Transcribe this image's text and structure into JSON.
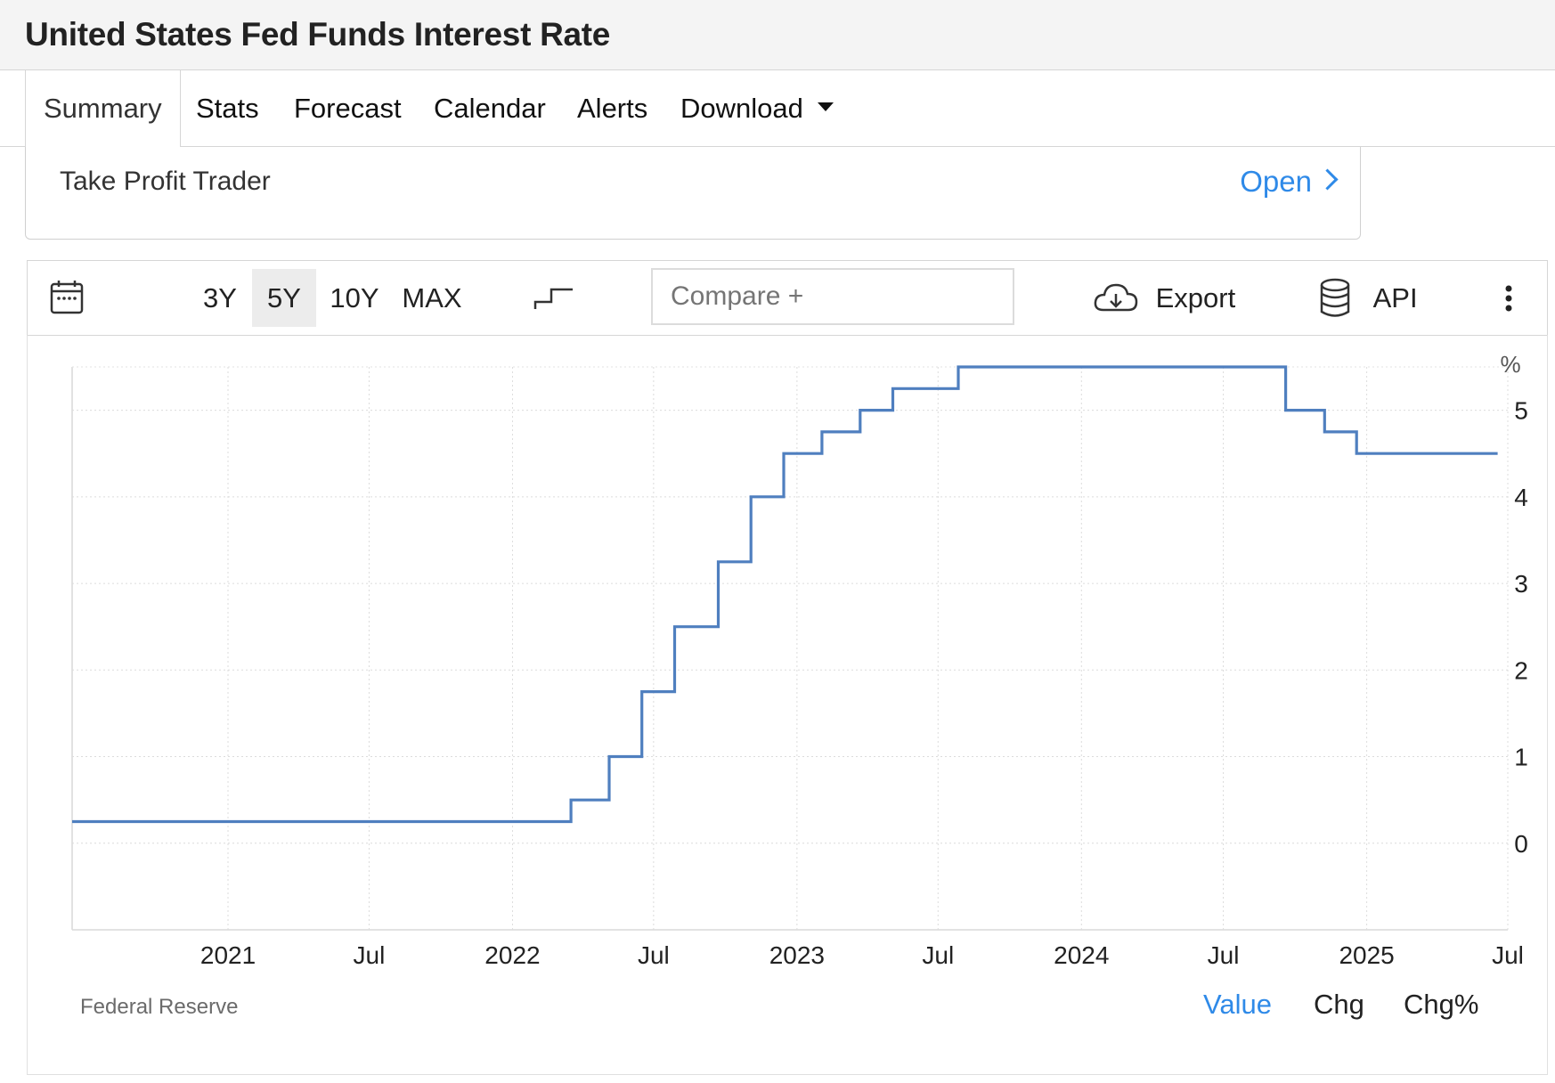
{
  "page": {
    "title": "United States Fed Funds Interest Rate"
  },
  "tabs": [
    {
      "label": "Summary",
      "active": true
    },
    {
      "label": "Stats"
    },
    {
      "label": "Forecast"
    },
    {
      "label": "Calendar"
    },
    {
      "label": "Alerts"
    },
    {
      "label": "Download",
      "dropdown": true
    }
  ],
  "ad": {
    "label": "Take Profit Trader",
    "action": "Open"
  },
  "toolbar": {
    "ranges": [
      {
        "label": "3Y"
      },
      {
        "label": "5Y",
        "active": true
      },
      {
        "label": "10Y"
      },
      {
        "label": "MAX"
      }
    ],
    "compare_placeholder": "Compare +",
    "export_label": "Export",
    "api_label": "API",
    "icons": [
      "calendar-icon",
      "step-chart-icon",
      "cloud-download-icon",
      "database-icon",
      "more-vertical-icon"
    ]
  },
  "chart_data": {
    "type": "line",
    "step": true,
    "unit_label": "%",
    "x_ticks": [
      "2021",
      "Jul",
      "2022",
      "Jul",
      "2023",
      "Jul",
      "2024",
      "Jul",
      "2025",
      "Jul"
    ],
    "x_tick_dates": [
      "2021-01-01",
      "2021-07-01",
      "2022-01-01",
      "2022-07-01",
      "2023-01-01",
      "2023-07-01",
      "2024-01-01",
      "2024-07-01",
      "2025-01-01",
      "2025-07-01"
    ],
    "xlim": [
      "2020-06-15",
      "2025-07-01"
    ],
    "y_ticks": [
      "0",
      "1",
      "2",
      "3",
      "4",
      "5"
    ],
    "ylim": [
      -1,
      5.5
    ],
    "series": [
      {
        "color": "#4f7fbf",
        "points": [
          {
            "date": "2020-06-15",
            "value": 0.25
          },
          {
            "date": "2022-03-17",
            "value": 0.5
          },
          {
            "date": "2022-05-05",
            "value": 1.0
          },
          {
            "date": "2022-06-16",
            "value": 1.75
          },
          {
            "date": "2022-07-28",
            "value": 2.5
          },
          {
            "date": "2022-09-22",
            "value": 3.25
          },
          {
            "date": "2022-11-03",
            "value": 4.0
          },
          {
            "date": "2022-12-15",
            "value": 4.5
          },
          {
            "date": "2023-02-02",
            "value": 4.75
          },
          {
            "date": "2023-03-23",
            "value": 5.0
          },
          {
            "date": "2023-05-04",
            "value": 5.25
          },
          {
            "date": "2023-07-27",
            "value": 5.5
          },
          {
            "date": "2024-09-19",
            "value": 5.0
          },
          {
            "date": "2024-11-08",
            "value": 4.75
          },
          {
            "date": "2024-12-19",
            "value": 4.5
          },
          {
            "date": "2025-06-18",
            "value": 4.5
          }
        ]
      }
    ],
    "grid": true,
    "source": "Federal Reserve",
    "value_tabs": [
      {
        "label": "Value",
        "active": true
      },
      {
        "label": "Chg"
      },
      {
        "label": "Chg%"
      }
    ]
  }
}
